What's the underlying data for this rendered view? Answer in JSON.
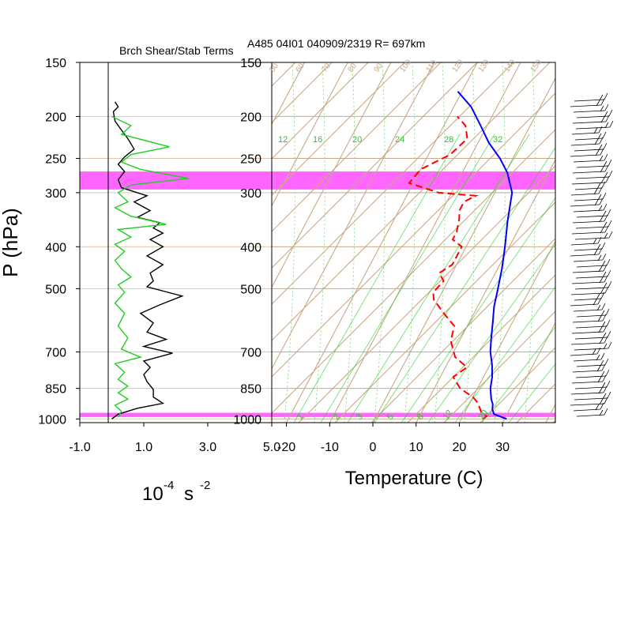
{
  "figure": {
    "title": "A485 04I01 040909/2319 R= 697km",
    "left_title": "Brch Shear/Stab Terms",
    "y_axis_label": "P (hPa)",
    "left_x_label": "10",
    "left_x_label_exp": "-4",
    "left_x_label_unit": "s",
    "left_x_label_unit_exp": "-2",
    "right_x_label": "Temperature (C)"
  },
  "chart_data": [
    {
      "type": "line",
      "title": "Brch Shear/Stab Terms",
      "xlabel": "10^-4 s^-2",
      "ylabel": "P (hPa)",
      "y_scale": "log-pressure",
      "ylim": [
        1020,
        150
      ],
      "xlim": [
        -1.0,
        5.0
      ],
      "x_ticks": [
        "-1.0",
        "1.0",
        "3.0",
        "5.0"
      ],
      "y_ticks": [
        150,
        200,
        250,
        300,
        400,
        500,
        700,
        850,
        1000
      ],
      "highlight_bands_hPa": [
        [
          268,
          295
        ],
        [
          968,
          990
        ]
      ],
      "highlight_color": "#ff66ff",
      "series": [
        {
          "color": "#000000",
          "points": [
            [
              0.1,
              185
            ],
            [
              0.2,
              190
            ],
            [
              0.05,
              195
            ],
            [
              0.1,
              205
            ],
            [
              0.3,
              215
            ],
            [
              0.5,
              225
            ],
            [
              0.7,
              238
            ],
            [
              0.4,
              248
            ],
            [
              0.2,
              258
            ],
            [
              0.4,
              268
            ],
            [
              0.2,
              280
            ],
            [
              0.3,
              292
            ],
            [
              1.1,
              305
            ],
            [
              0.7,
              315
            ],
            [
              1.2,
              330
            ],
            [
              0.8,
              342
            ],
            [
              1.5,
              352
            ],
            [
              1.3,
              362
            ],
            [
              1.6,
              372
            ],
            [
              1.2,
              385
            ],
            [
              1.6,
              400
            ],
            [
              1.1,
              420
            ],
            [
              1.6,
              440
            ],
            [
              1.2,
              460
            ],
            [
              1.3,
              480
            ],
            [
              1.1,
              495
            ],
            [
              2.2,
              520
            ],
            [
              1.5,
              545
            ],
            [
              0.9,
              570
            ],
            [
              1.3,
              600
            ],
            [
              1.1,
              630
            ],
            [
              1.7,
              655
            ],
            [
              1.0,
              680
            ],
            [
              1.9,
              705
            ],
            [
              1.0,
              735
            ],
            [
              1.2,
              760
            ],
            [
              1.0,
              790
            ],
            [
              1.1,
              820
            ],
            [
              1.3,
              855
            ],
            [
              1.3,
              890
            ],
            [
              1.6,
              920
            ],
            [
              0.8,
              945
            ],
            [
              0.2,
              975
            ],
            [
              0.0,
              1000
            ]
          ]
        },
        {
          "color": "#22cc22",
          "points": [
            [
              0.0,
              200
            ],
            [
              0.6,
              210
            ],
            [
              0.3,
              220
            ],
            [
              1.8,
              235
            ],
            [
              0.6,
              245
            ],
            [
              0.3,
              255
            ],
            [
              0.9,
              265
            ],
            [
              2.4,
              278
            ],
            [
              0.6,
              288
            ],
            [
              0.2,
              300
            ],
            [
              0.5,
              315
            ],
            [
              0.1,
              325
            ],
            [
              0.6,
              340
            ],
            [
              1.7,
              355
            ],
            [
              0.2,
              365
            ],
            [
              0.6,
              380
            ],
            [
              0.1,
              395
            ],
            [
              0.4,
              410
            ],
            [
              0.1,
              430
            ],
            [
              0.3,
              450
            ],
            [
              0.6,
              470
            ],
            [
              0.2,
              490
            ],
            [
              0.4,
              510
            ],
            [
              0.1,
              540
            ],
            [
              0.4,
              570
            ],
            [
              0.2,
              610
            ],
            [
              0.5,
              650
            ],
            [
              0.3,
              690
            ],
            [
              0.9,
              720
            ],
            [
              0.1,
              745
            ],
            [
              0.4,
              780
            ],
            [
              0.2,
              810
            ],
            [
              0.5,
              840
            ],
            [
              0.2,
              870
            ],
            [
              0.5,
              900
            ],
            [
              0.1,
              930
            ],
            [
              0.3,
              960
            ],
            [
              0.2,
              990
            ]
          ]
        }
      ]
    },
    {
      "type": "line",
      "title": "A485 04I01 040909/2319 R= 697km",
      "xlabel": "Temperature (C)",
      "ylabel": "P (hPa)",
      "chart_kind": "skew-T log-p",
      "y_scale": "log-pressure",
      "ylim": [
        1020,
        150
      ],
      "xlim": [
        -25,
        42
      ],
      "x_ticks": [
        "-20",
        "-10",
        "0",
        "10",
        "20",
        "30"
      ],
      "y_ticks": [
        150,
        200,
        250,
        300,
        400,
        500,
        700,
        850,
        1000
      ],
      "mixing_ratio_labels_top": [
        "12",
        "16",
        "20",
        "24",
        "28",
        "32"
      ],
      "mixing_ratio_labels_bottom": [
        "1",
        "2",
        "3",
        "5",
        "8",
        "12",
        "20"
      ],
      "adiabat_labels_top": [
        "50",
        "60",
        "70",
        "80",
        "90",
        "100",
        "110",
        "120",
        "130",
        "140",
        "150"
      ],
      "series": [
        {
          "name": "temperature",
          "color": "#0000ff",
          "style": "solid",
          "points": [
            [
              30.5,
              1000
            ],
            [
              27,
              975
            ],
            [
              26,
              950
            ],
            [
              25.5,
              925
            ],
            [
              24.5,
              900
            ],
            [
              23,
              850
            ],
            [
              22,
              800
            ],
            [
              20.5,
              750
            ],
            [
              18.5,
              700
            ],
            [
              17,
              650
            ],
            [
              15.5,
              600
            ],
            [
              13.8,
              550
            ],
            [
              12.5,
              500
            ],
            [
              11,
              450
            ],
            [
              9,
              400
            ],
            [
              6.5,
              350
            ],
            [
              4,
              300
            ],
            [
              0.5,
              270
            ],
            [
              -3,
              250
            ],
            [
              -7.5,
              230
            ],
            [
              -11.5,
              210
            ],
            [
              -16,
              190
            ],
            [
              -21,
              175
            ]
          ]
        },
        {
          "name": "dewpoint",
          "color": "#ff0000",
          "style": "dashed",
          "points": [
            [
              25,
              1000
            ],
            [
              25.5,
              985
            ],
            [
              24,
              970
            ],
            [
              23,
              945
            ],
            [
              22,
              920
            ],
            [
              20,
              890
            ],
            [
              16,
              850
            ],
            [
              13,
              800
            ],
            [
              15,
              760
            ],
            [
              11,
              720
            ],
            [
              8,
              660
            ],
            [
              7,
              610
            ],
            [
              3,
              570
            ],
            [
              -1,
              530
            ],
            [
              -2,
              510
            ],
            [
              -1,
              480
            ],
            [
              -3,
              460
            ],
            [
              -1,
              440
            ],
            [
              -1,
              420
            ],
            [
              -1,
              400
            ],
            [
              -4,
              385
            ],
            [
              -4,
              370
            ],
            [
              -5,
              345
            ],
            [
              -6,
              330
            ],
            [
              -6,
              315
            ],
            [
              -4,
              305
            ],
            [
              -13,
              300
            ],
            [
              -21,
              285
            ],
            [
              -20,
              265
            ],
            [
              -15,
              245
            ],
            [
              -13,
              225
            ],
            [
              -15,
              210
            ],
            [
              -18,
              200
            ]
          ]
        }
      ]
    }
  ]
}
